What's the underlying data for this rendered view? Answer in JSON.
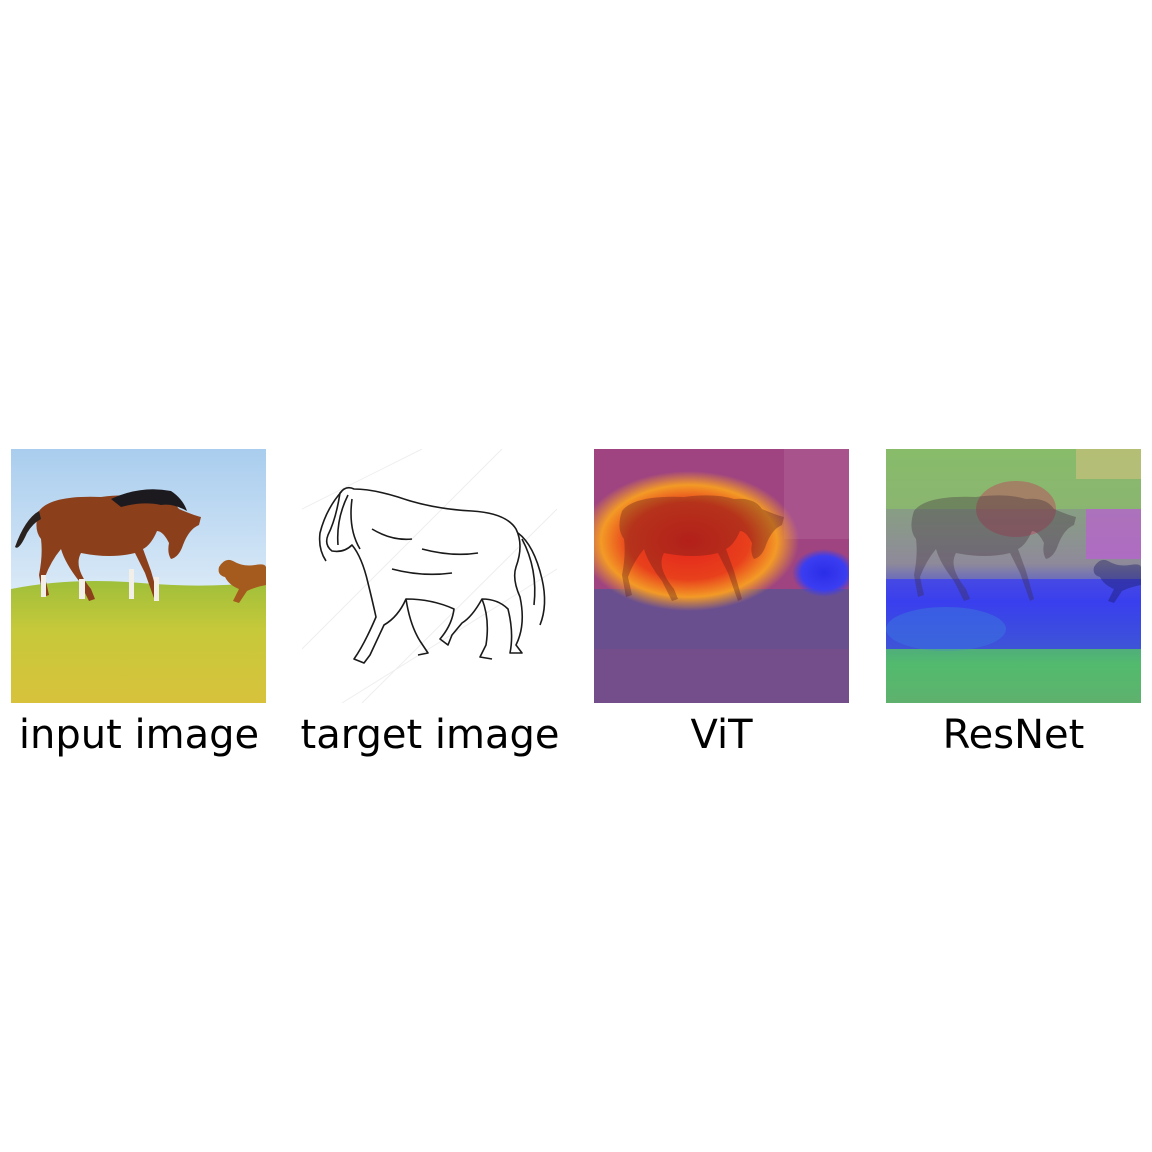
{
  "panels": [
    {
      "id": "input",
      "caption": "input image"
    },
    {
      "id": "target",
      "caption": "target image"
    },
    {
      "id": "vit",
      "caption": "ViT"
    },
    {
      "id": "resnet",
      "caption": "ResNet"
    }
  ],
  "colors": {
    "sky": "#b9d7f2",
    "grass": "#c9c73a",
    "horse_body": "#8a3f1c",
    "mane": "#1c1a1f",
    "sketch_line": "#1a1a1a",
    "heat_high": "#e8231c",
    "heat_mid": "#f5a623",
    "heat_low": "#6a4f8f",
    "heat_cool": "#3a3df0",
    "heat_green": "#4fc06a"
  }
}
